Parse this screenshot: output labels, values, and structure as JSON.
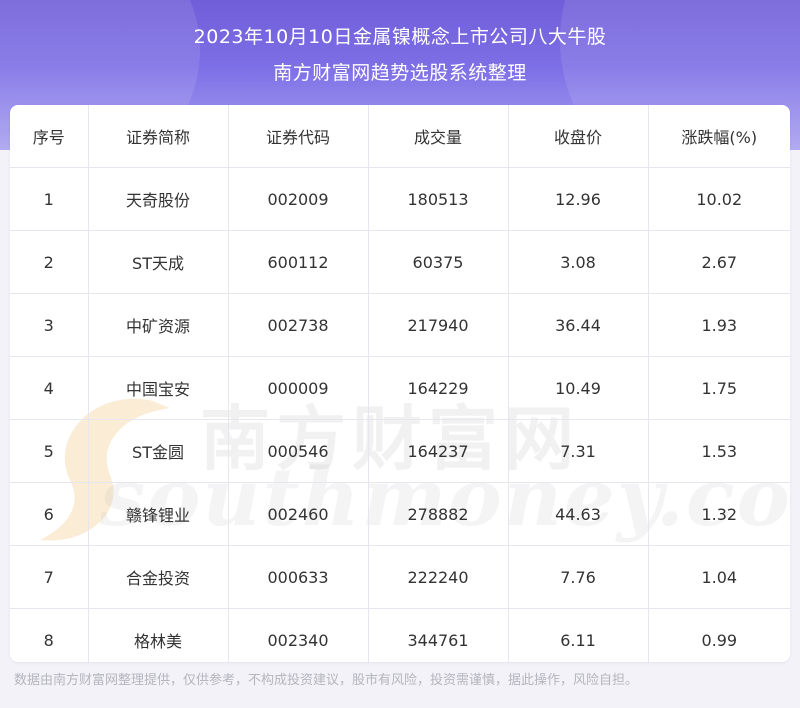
{
  "header": {
    "title_line1": "2023年10月10日金属镍概念上市公司八大牛股",
    "title_line2": "南方财富网趋势选股系统整理"
  },
  "table": {
    "columns": [
      "序号",
      "证券简称",
      "证券代码",
      "成交量",
      "收盘价",
      "涨跌幅(%)"
    ],
    "rows": [
      [
        "1",
        "天奇股份",
        "002009",
        "180513",
        "12.96",
        "10.02"
      ],
      [
        "2",
        "ST天成",
        "600112",
        "60375",
        "3.08",
        "2.67"
      ],
      [
        "3",
        "中矿资源",
        "002738",
        "217940",
        "36.44",
        "1.93"
      ],
      [
        "4",
        "中国宝安",
        "000009",
        "164229",
        "10.49",
        "1.75"
      ],
      [
        "5",
        "ST金圆",
        "000546",
        "164237",
        "7.31",
        "1.53"
      ],
      [
        "6",
        "赣锋锂业",
        "002460",
        "278882",
        "44.63",
        "1.32"
      ],
      [
        "7",
        "合金投资",
        "000633",
        "222240",
        "7.76",
        "1.04"
      ],
      [
        "8",
        "格林美",
        "002340",
        "344761",
        "6.11",
        "0.99"
      ]
    ]
  },
  "watermark": {
    "text_cn": "南方财富网",
    "text_en": "southmoney.com"
  },
  "footer": {
    "disclaimer": "数据由南方财富网整理提供，仅供参考，不构成投资建议，股市有风险，投资需谨慎，据此操作，风险自担。"
  },
  "colors": {
    "header_gradient_top": "#6f5ed8",
    "header_gradient_bottom": "#a9a2f0",
    "watermark_swirl": "#f3c98a"
  }
}
